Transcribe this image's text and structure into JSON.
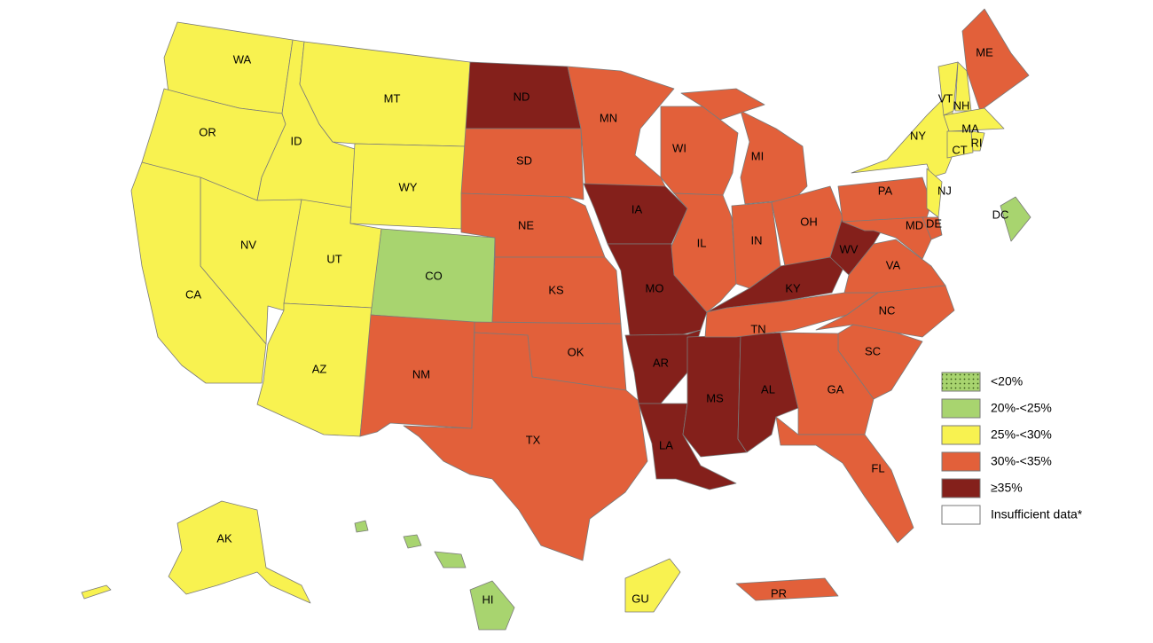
{
  "map": {
    "legend": [
      {
        "label": "<20%",
        "color": "#a8d46f",
        "pattern": "dots"
      },
      {
        "label": "20%-<25%",
        "color": "#a8d46f"
      },
      {
        "label": "25%-<30%",
        "color": "#f8f250"
      },
      {
        "label": "30%-<35%",
        "color": "#e2603a"
      },
      {
        "label": "≥35%",
        "color": "#84201b"
      },
      {
        "label": "Insufficient data*",
        "color": "#ffffff"
      }
    ],
    "states": [
      {
        "label": "WA",
        "color": "#f8f250"
      },
      {
        "label": "OR",
        "color": "#f8f250"
      },
      {
        "label": "ID",
        "color": "#f8f250"
      },
      {
        "label": "MT",
        "color": "#f8f250"
      },
      {
        "label": "WY",
        "color": "#f8f250"
      },
      {
        "label": "NV",
        "color": "#f8f250"
      },
      {
        "label": "CA",
        "color": "#f8f250"
      },
      {
        "label": "UT",
        "color": "#f8f250"
      },
      {
        "label": "AZ",
        "color": "#f8f250"
      },
      {
        "label": "CO",
        "color": "#a8d46f"
      },
      {
        "label": "NM",
        "color": "#e2603a"
      },
      {
        "label": "ND",
        "color": "#84201b"
      },
      {
        "label": "SD",
        "color": "#e2603a"
      },
      {
        "label": "NE",
        "color": "#e2603a"
      },
      {
        "label": "KS",
        "color": "#e2603a"
      },
      {
        "label": "OK",
        "color": "#e2603a"
      },
      {
        "label": "TX",
        "color": "#e2603a"
      },
      {
        "label": "MN",
        "color": "#e2603a"
      },
      {
        "label": "IA",
        "color": "#84201b"
      },
      {
        "label": "MO",
        "color": "#84201b"
      },
      {
        "label": "AR",
        "color": "#84201b"
      },
      {
        "label": "LA",
        "color": "#84201b"
      },
      {
        "label": "MS",
        "color": "#84201b"
      },
      {
        "label": "AL",
        "color": "#84201b"
      },
      {
        "label": "WI",
        "color": "#e2603a"
      },
      {
        "label": "IL",
        "color": "#e2603a"
      },
      {
        "label": "MI",
        "color": "#e2603a"
      },
      {
        "label": "IN",
        "color": "#e2603a"
      },
      {
        "label": "OH",
        "color": "#e2603a"
      },
      {
        "label": "KY",
        "color": "#84201b"
      },
      {
        "label": "TN",
        "color": "#e2603a"
      },
      {
        "label": "WV",
        "color": "#84201b"
      },
      {
        "label": "VA",
        "color": "#e2603a"
      },
      {
        "label": "NC",
        "color": "#e2603a"
      },
      {
        "label": "SC",
        "color": "#e2603a"
      },
      {
        "label": "GA",
        "color": "#e2603a"
      },
      {
        "label": "FL",
        "color": "#e2603a"
      },
      {
        "label": "PA",
        "color": "#e2603a"
      },
      {
        "label": "NY",
        "color": "#f8f250"
      },
      {
        "label": "NJ",
        "color": "#f8f250"
      },
      {
        "label": "DE",
        "color": "#e2603a"
      },
      {
        "label": "MD",
        "color": "#e2603a"
      },
      {
        "label": "VT",
        "color": "#f8f250"
      },
      {
        "label": "NH",
        "color": "#f8f250"
      },
      {
        "label": "ME",
        "color": "#e2603a"
      },
      {
        "label": "MA",
        "color": "#f8f250"
      },
      {
        "label": "CT",
        "color": "#f8f250"
      },
      {
        "label": "RI",
        "color": "#f8f250"
      },
      {
        "label": "DC",
        "color": "#a8d46f"
      },
      {
        "label": "AK",
        "color": "#f8f250"
      },
      {
        "label": "HI",
        "color": "#a8d46f"
      },
      {
        "label": "GU",
        "color": "#f8f250"
      },
      {
        "label": "PR",
        "color": "#e2603a"
      }
    ]
  }
}
